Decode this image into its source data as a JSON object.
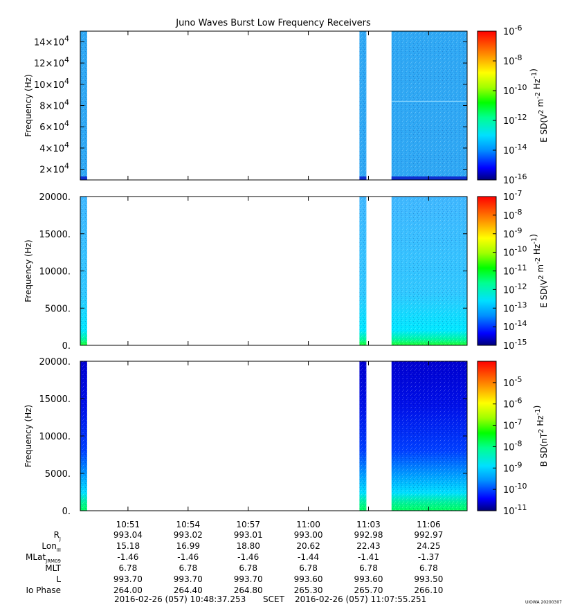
{
  "chart_data": {
    "title": "Juno Waves Burst Low Frequency Receivers",
    "type": "heatmap",
    "time_axis": {
      "ticks": [
        "10:51",
        "10:54",
        "10:57",
        "11:00",
        "11:03",
        "11:06"
      ],
      "start": "2016-02-26 (057) 10:48:37.253",
      "end": "2016-02-26 (057) 11:07:55.251",
      "scet_label": "SCET"
    },
    "panels": [
      {
        "ylabel": "Frequency (Hz)",
        "y_ticks": [
          "2×10^4",
          "4×10^4",
          "6×10^4",
          "8×10^4",
          "10×10^4",
          "12×10^4",
          "14×10^4"
        ],
        "y_tick_values": [
          20000,
          40000,
          60000,
          80000,
          100000,
          120000,
          140000
        ],
        "ylim": [
          10000,
          150000
        ],
        "colorbar": {
          "label": "E SD(V^2 m^-2 Hz^-1)",
          "ticks": [
            "10^-6",
            "10^-8",
            "10^-10",
            "10^-12",
            "10^-14",
            "10^-16"
          ],
          "range": [
            1e-16,
            1e-06
          ],
          "log": true
        },
        "data_blocks": [
          {
            "start": "10:48:37",
            "end": "10:48:56",
            "dominant_level": "10^-14",
            "low_band_level": "10^-15"
          },
          {
            "start": "11:02:33",
            "end": "11:02:52",
            "dominant_level": "10^-14",
            "low_band_level": "10^-15"
          },
          {
            "start": "11:04:09",
            "end": "11:07:55",
            "dominant_level": "10^-14",
            "low_band_level": "10^-15"
          }
        ]
      },
      {
        "ylabel": "Frequency (Hz)",
        "y_ticks": [
          "0.",
          "5000.",
          "10000.",
          "15000.",
          "20000."
        ],
        "y_tick_values": [
          0,
          5000,
          10000,
          15000,
          20000
        ],
        "ylim": [
          0,
          20000
        ],
        "colorbar": {
          "label": "E SD(V^2 m^-2 Hz^-1)",
          "ticks": [
            "10^-7",
            "10^-8",
            "10^-9",
            "10^-10",
            "10^-11",
            "10^-12",
            "10^-13",
            "10^-14",
            "10^-15"
          ],
          "range": [
            1e-15,
            1e-07
          ],
          "log": true
        },
        "data_blocks": [
          {
            "start": "10:48:37",
            "end": "10:48:56",
            "dominant_level": "10^-13",
            "low_band_level": "10^-11"
          },
          {
            "start": "11:02:33",
            "end": "11:02:52",
            "dominant_level": "10^-13",
            "low_band_level": "10^-11"
          },
          {
            "start": "11:04:09",
            "end": "11:07:55",
            "dominant_level": "10^-13",
            "low_band_level": "10^-11"
          }
        ]
      },
      {
        "ylabel": "Frequency (Hz)",
        "y_ticks": [
          "0.",
          "5000.",
          "10000.",
          "15000.",
          "20000."
        ],
        "y_tick_values": [
          0,
          5000,
          10000,
          15000,
          20000
        ],
        "ylim": [
          0,
          20000
        ],
        "colorbar": {
          "label": "B SD(nT^2 Hz^-1)",
          "ticks": [
            "10^-5",
            "10^-6",
            "10^-7",
            "10^-8",
            "10^-9",
            "10^-10",
            "10^-11"
          ],
          "range": [
            1e-11,
            0.0001
          ],
          "log": true
        },
        "data_blocks": [
          {
            "start": "10:48:37",
            "end": "10:48:56",
            "dominant_level": "10^-10",
            "low_band_level": "10^-8"
          },
          {
            "start": "11:02:33",
            "end": "11:02:52",
            "dominant_level": "10^-10",
            "low_band_level": "10^-8"
          },
          {
            "start": "11:04:09",
            "end": "11:07:55",
            "dominant_level": "10^-10",
            "low_band_level": "10^-8"
          }
        ]
      }
    ],
    "ephemeris": {
      "rows": [
        {
          "label": "R",
          "sub": "J",
          "values": [
            "993.04",
            "993.02",
            "993.01",
            "993.00",
            "992.98",
            "992.97"
          ]
        },
        {
          "label": "Lon",
          "sub": "III",
          "values": [
            "15.18",
            "16.99",
            "18.80",
            "20.62",
            "22.43",
            "24.25"
          ]
        },
        {
          "label": "MLat",
          "sub": "JRM09",
          "values": [
            "-1.46",
            "-1.46",
            "-1.46",
            "-1.44",
            "-1.41",
            "-1.37"
          ]
        },
        {
          "label": "MLT",
          "sub": "",
          "values": [
            "6.78",
            "6.78",
            "6.78",
            "6.78",
            "6.78",
            "6.78"
          ]
        },
        {
          "label": "L",
          "sub": "",
          "values": [
            "993.70",
            "993.70",
            "993.70",
            "993.60",
            "993.60",
            "993.50"
          ]
        },
        {
          "label": "Io Phase",
          "sub": "",
          "values": [
            "264.00",
            "264.40",
            "264.80",
            "265.30",
            "265.70",
            "266.10"
          ]
        }
      ]
    },
    "credit": "UIOWA 20200307"
  }
}
